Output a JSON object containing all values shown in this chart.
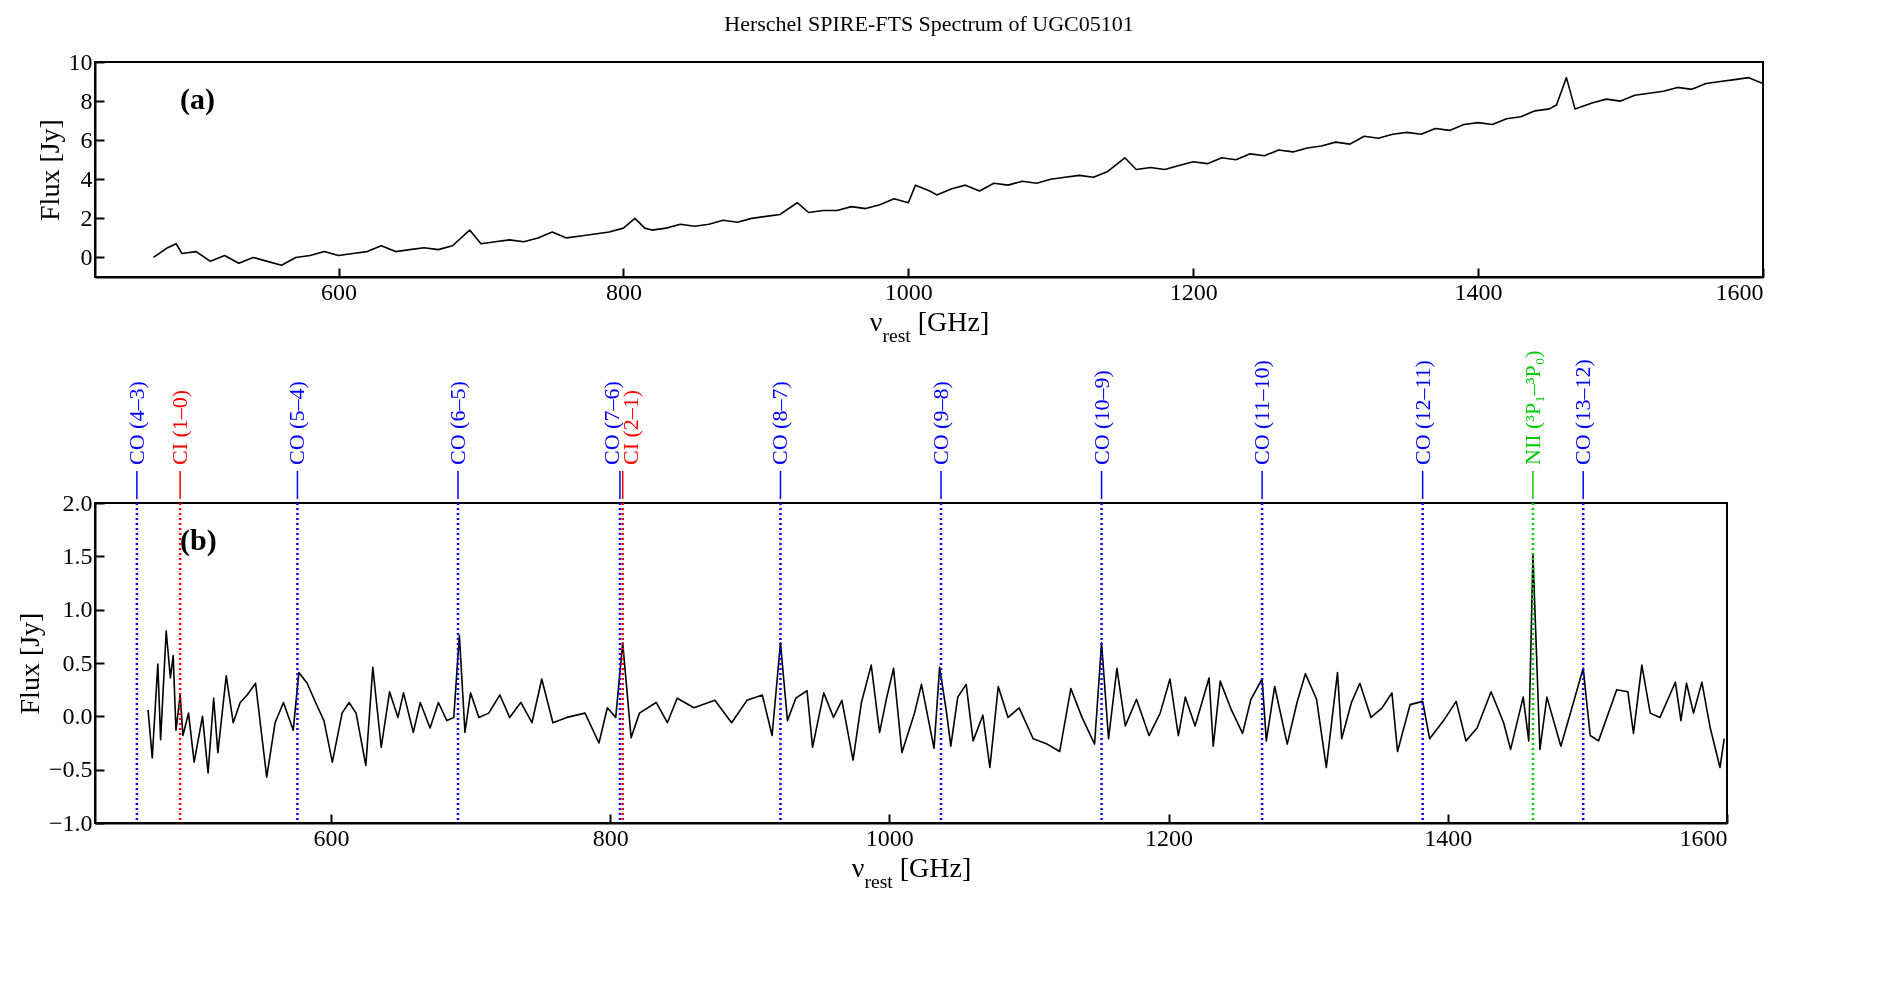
{
  "chart_data": [
    {
      "type": "line",
      "title": "Herschel SPIRE-FTS Spectrum of UGC05101",
      "xlabel": "ν$_{rest}$ [GHz]",
      "ylabel": "Flux [Jy]",
      "annotations": [
        "(a)"
      ],
      "color": "#000000",
      "x": [
        470,
        480,
        486,
        490,
        500,
        510,
        520,
        530,
        540,
        550,
        560,
        570,
        580,
        590,
        600,
        610,
        620,
        630,
        640,
        650,
        660,
        670,
        680,
        692,
        700,
        710,
        720,
        730,
        740,
        750,
        760,
        770,
        780,
        790,
        800,
        808,
        815,
        820,
        830,
        840,
        850,
        860,
        870,
        880,
        890,
        900,
        910,
        922,
        930,
        940,
        950,
        960,
        970,
        980,
        990,
        1000,
        1005,
        1015,
        1020,
        1030,
        1040,
        1050,
        1060,
        1070,
        1080,
        1090,
        1100,
        1110,
        1120,
        1130,
        1140,
        1152,
        1160,
        1170,
        1180,
        1190,
        1200,
        1210,
        1220,
        1230,
        1240,
        1250,
        1260,
        1270,
        1280,
        1290,
        1300,
        1310,
        1320,
        1330,
        1340,
        1350,
        1360,
        1370,
        1380,
        1390,
        1400,
        1410,
        1420,
        1430,
        1440,
        1450,
        1455,
        1462,
        1468,
        1480,
        1490,
        1500,
        1510,
        1520,
        1530,
        1540,
        1550,
        1560,
        1570,
        1580,
        1590,
        1600
      ],
      "values": [
        0.0,
        0.5,
        0.7,
        0.2,
        0.3,
        -0.2,
        0.1,
        -0.3,
        0.0,
        -0.2,
        -0.4,
        0.0,
        0.1,
        0.3,
        0.1,
        0.2,
        0.3,
        0.6,
        0.3,
        0.4,
        0.5,
        0.4,
        0.6,
        1.4,
        0.7,
        0.8,
        0.9,
        0.8,
        1.0,
        1.3,
        1.0,
        1.1,
        1.2,
        1.3,
        1.5,
        2.0,
        1.5,
        1.4,
        1.5,
        1.7,
        1.6,
        1.7,
        1.9,
        1.8,
        2.0,
        2.1,
        2.2,
        2.8,
        2.3,
        2.4,
        2.4,
        2.6,
        2.5,
        2.7,
        3.0,
        2.8,
        3.7,
        3.4,
        3.2,
        3.5,
        3.7,
        3.4,
        3.8,
        3.7,
        3.9,
        3.8,
        4.0,
        4.1,
        4.2,
        4.1,
        4.4,
        5.1,
        4.5,
        4.6,
        4.5,
        4.7,
        4.9,
        4.8,
        5.1,
        5.0,
        5.3,
        5.2,
        5.5,
        5.4,
        5.6,
        5.7,
        5.9,
        5.8,
        6.2,
        6.1,
        6.3,
        6.4,
        6.3,
        6.6,
        6.5,
        6.8,
        6.9,
        6.8,
        7.1,
        7.2,
        7.5,
        7.6,
        7.8,
        9.2,
        7.6,
        7.9,
        8.1,
        8.0,
        8.3,
        8.4,
        8.5,
        8.7,
        8.6,
        8.9,
        9.0,
        9.1,
        9.2,
        8.9
      ],
      "xlim": [
        429,
        1600
      ],
      "xticks": [
        600,
        800,
        1000,
        1200,
        1400,
        1600
      ],
      "ylim": [
        -1,
        10
      ],
      "yticks": [
        0,
        2,
        4,
        6,
        8,
        10
      ]
    },
    {
      "type": "line",
      "xlabel": "ν$_{rest}$ [GHz]",
      "ylabel": "Flux [Jy]",
      "annotations": [
        "(b)"
      ],
      "color": "#000000",
      "x": [
        469,
        472,
        476,
        478,
        482,
        485,
        487,
        489,
        492,
        494,
        498,
        502,
        508,
        512,
        516,
        519,
        525,
        530,
        535,
        540,
        546,
        554,
        560,
        566,
        573,
        577,
        583,
        589,
        595,
        601,
        608,
        613,
        618,
        625,
        630,
        636,
        642,
        648,
        652,
        659,
        664,
        671,
        677,
        683,
        688,
        692,
        696,
        700,
        706,
        713,
        721,
        728,
        736,
        744,
        751,
        759,
        769,
        782,
        792,
        798,
        804,
        809,
        815,
        821,
        833,
        841,
        848,
        860,
        875,
        887,
        898,
        909,
        916,
        922,
        927,
        933,
        941,
        945,
        953,
        960,
        966,
        974,
        980,
        987,
        993,
        998,
        1003,
        1009,
        1018,
        1023,
        1032,
        1036,
        1041,
        1044,
        1049,
        1055,
        1060,
        1067,
        1072,
        1078,
        1085,
        1093,
        1103,
        1113,
        1122,
        1130,
        1138,
        1147,
        1152,
        1157,
        1163,
        1169,
        1177,
        1186,
        1194,
        1201,
        1207,
        1212,
        1219,
        1229,
        1232,
        1237,
        1245,
        1253,
        1259,
        1267,
        1270,
        1276,
        1285,
        1292,
        1298,
        1306,
        1313,
        1321,
        1324,
        1331,
        1337,
        1345,
        1353,
        1360,
        1364,
        1373,
        1382,
        1387,
        1397,
        1406,
        1413,
        1421,
        1431,
        1440,
        1445,
        1454,
        1458,
        1461,
        1466,
        1471,
        1481,
        1490,
        1497,
        1502,
        1508,
        1521,
        1529,
        1533,
        1539,
        1545,
        1552,
        1563,
        1567,
        1571,
        1576,
        1582,
        1588,
        1595,
        1598
      ],
      "values": [
        0.06,
        -0.39,
        0.49,
        -0.22,
        0.8,
        0.36,
        0.57,
        -0.13,
        0.2,
        -0.18,
        0.03,
        -0.43,
        0.0,
        -0.53,
        0.17,
        -0.34,
        0.38,
        -0.06,
        0.13,
        0.2,
        0.31,
        -0.57,
        -0.06,
        0.13,
        -0.13,
        0.41,
        0.31,
        0.13,
        -0.04,
        -0.43,
        0.03,
        0.13,
        0.03,
        -0.46,
        0.46,
        -0.29,
        0.23,
        -0.01,
        0.22,
        -0.15,
        0.13,
        -0.11,
        0.13,
        -0.04,
        -0.01,
        0.76,
        -0.15,
        0.22,
        -0.01,
        0.03,
        0.2,
        -0.01,
        0.13,
        -0.06,
        0.35,
        -0.06,
        -0.01,
        0.03,
        -0.25,
        0.08,
        -0.01,
        0.69,
        -0.2,
        0.03,
        0.13,
        -0.06,
        0.17,
        0.08,
        0.15,
        -0.06,
        0.15,
        0.2,
        -0.18,
        0.69,
        -0.04,
        0.17,
        0.24,
        -0.29,
        0.22,
        -0.01,
        0.15,
        -0.41,
        0.13,
        0.48,
        -0.15,
        0.17,
        0.45,
        -0.34,
        0.03,
        0.3,
        -0.3,
        0.46,
        0.03,
        -0.28,
        0.18,
        0.3,
        -0.23,
        0.01,
        -0.48,
        0.28,
        -0.01,
        0.08,
        -0.21,
        -0.26,
        -0.33,
        0.26,
        -0.01,
        -0.26,
        0.69,
        -0.21,
        0.45,
        -0.09,
        0.16,
        -0.18,
        0.03,
        0.35,
        -0.18,
        0.18,
        -0.09,
        0.36,
        -0.28,
        0.33,
        0.06,
        -0.16,
        0.16,
        0.35,
        -0.23,
        0.28,
        -0.26,
        0.13,
        0.4,
        0.16,
        -0.48,
        0.41,
        -0.21,
        0.13,
        0.31,
        -0.01,
        0.08,
        0.22,
        -0.33,
        0.11,
        0.14,
        -0.21,
        -0.04,
        0.14,
        -0.23,
        -0.11,
        0.23,
        -0.06,
        -0.31,
        0.18,
        -0.23,
        1.51,
        -0.31,
        0.18,
        -0.28,
        0.13,
        0.45,
        -0.18,
        -0.23,
        0.25,
        0.23,
        -0.16,
        0.48,
        0.03,
        -0.01,
        0.32,
        -0.04,
        0.31,
        0.03,
        0.32,
        -0.11,
        -0.48,
        -0.21
      ],
      "xlim": [
        431,
        1600
      ],
      "xticks": [
        600,
        800,
        1000,
        1200,
        1400,
        1600
      ],
      "ylim": [
        -1,
        2
      ],
      "yticks": [
        {
          "value": -1,
          "label": "−1.0"
        },
        {
          "value": -0.5,
          "label": "−0.5"
        },
        {
          "value": 0,
          "label": "0.0"
        },
        {
          "value": 0.5,
          "label": "0.5"
        },
        {
          "value": 1,
          "label": "1.0"
        },
        {
          "value": 1.5,
          "label": "1.5"
        },
        {
          "value": 2,
          "label": "2.0"
        }
      ],
      "ref_lines": [
        {
          "axis": "x",
          "value": 461,
          "label": "CO (4–3)",
          "color": "#0000ff",
          "line_style": "dotted"
        },
        {
          "axis": "x",
          "value": 492,
          "label": "CI (1–0)",
          "color": "#ff0000",
          "line_style": "dotted"
        },
        {
          "axis": "x",
          "value": 576,
          "label": "CO (5–4)",
          "color": "#0000ff",
          "line_style": "dotted"
        },
        {
          "axis": "x",
          "value": 691,
          "label": "CO (6–5)",
          "color": "#0000ff",
          "line_style": "dotted"
        },
        {
          "axis": "x",
          "value": 807,
          "label": "CO (7–6)",
          "color": "#0000ff",
          "line_style": "dotted"
        },
        {
          "axis": "x",
          "value": 809,
          "label": "CI (2–1)",
          "color": "#ff0000",
          "line_style": "dotted"
        },
        {
          "axis": "x",
          "value": 922,
          "label": "CO (8–7)",
          "color": "#0000ff",
          "line_style": "dotted"
        },
        {
          "axis": "x",
          "value": 1037,
          "label": "CO (9–8)",
          "color": "#0000ff",
          "line_style": "dotted"
        },
        {
          "axis": "x",
          "value": 1152,
          "label": "CO (10–9)",
          "color": "#0000ff",
          "line_style": "dotted"
        },
        {
          "axis": "x",
          "value": 1267,
          "label": "CO (11–10)",
          "color": "#0000ff",
          "line_style": "dotted"
        },
        {
          "axis": "x",
          "value": 1382,
          "label": "CO (12–11)",
          "color": "#0000ff",
          "line_style": "dotted"
        },
        {
          "axis": "x",
          "value": 1461,
          "label": "NII (³P₁–³P₀)",
          "color": "#00cc00",
          "line_style": "dotted"
        },
        {
          "axis": "x",
          "value": 1497,
          "label": "CO (13–12)",
          "color": "#0000ff",
          "line_style": "dotted"
        }
      ]
    }
  ]
}
